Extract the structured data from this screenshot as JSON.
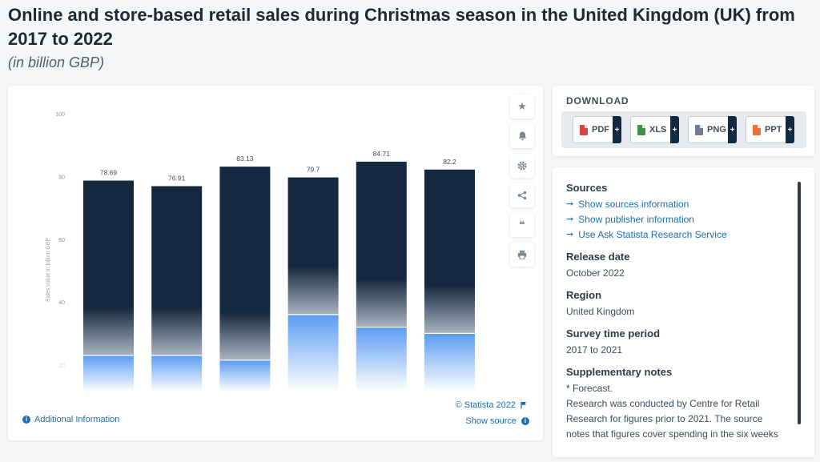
{
  "title": "Online and store-based retail sales during Christmas season in the United Kingdom (UK) from 2017 to 2022",
  "subtitle": "(in billion GBP)",
  "chart_data": {
    "type": "bar",
    "categories": [
      "",
      "",
      "",
      "",
      "",
      ""
    ],
    "values": [
      78.69,
      76.91,
      83.13,
      79.7,
      84.71,
      82.2
    ],
    "value_labels": [
      "78.69",
      "76.91",
      "83.13",
      "79.7",
      "84.71",
      "82.2"
    ],
    "online_share_level": [
      23,
      23,
      21.5,
      36,
      32,
      30
    ],
    "ylabel": "Sales value in billion GBP",
    "ylim": [
      0,
      100
    ],
    "yticks": [
      "100",
      "80",
      "60",
      "40",
      "20"
    ],
    "grid": false,
    "colors": {
      "bar_dark": "#14283f",
      "bar_light": "#5b9cf2"
    }
  },
  "chart_footer": {
    "credit": "© Statista 2022",
    "show_source": "Show source",
    "additional_info": "Additional Information"
  },
  "tools": [
    "star-icon",
    "bell-icon",
    "gear-icon",
    "share-icon",
    "quote-icon",
    "print-icon"
  ],
  "download": {
    "heading": "DOWNLOAD",
    "buttons": [
      {
        "label": "PDF",
        "color": "#d64545"
      },
      {
        "label": "XLS",
        "color": "#3f9142"
      },
      {
        "label": "PNG",
        "color": "#6b7c93"
      },
      {
        "label": "PPT",
        "color": "#e8733a"
      }
    ],
    "plus": "+"
  },
  "info": {
    "sources_heading": "Sources",
    "links": [
      "Show sources information",
      "Show publisher information",
      "Use Ask Statista Research Service"
    ],
    "release_heading": "Release date",
    "release_value": "October 2022",
    "region_heading": "Region",
    "region_value": "United Kingdom",
    "survey_heading": "Survey time period",
    "survey_value": "2017 to 2021",
    "notes_heading": "Supplementary notes",
    "notes_lines": [
      "* Forecast.",
      "Research was conducted by Centre for Retail",
      "Research for figures prior to 2021. The source",
      "notes that figures cover spending in the six weeks"
    ]
  }
}
